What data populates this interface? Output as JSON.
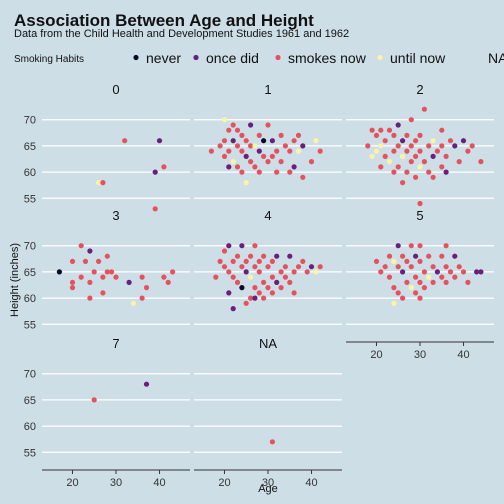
{
  "chart_data": {
    "type": "scatter",
    "title": "Association Between Age and Height",
    "subtitle": "Data from the Child Health and Development Studies 1961 and 1962",
    "xlabel": "Age",
    "ylabel": "Height (inches)",
    "xlim": [
      13,
      47
    ],
    "ylim": [
      52,
      73
    ],
    "x_ticks": [
      20,
      30,
      40
    ],
    "y_ticks": [
      55,
      60,
      65,
      70
    ],
    "grid": true,
    "legend": {
      "title": "Smoking Habits",
      "position": "top",
      "entries": [
        {
          "label": "never",
          "color": "#0d0a29"
        },
        {
          "label": "once did",
          "color": "#6a1f7a"
        },
        {
          "label": "smokes now",
          "color": "#e5525f"
        },
        {
          "label": "until now",
          "color": "#fdf3a8"
        },
        {
          "label": "NA",
          "color": "#9d9d9d"
        }
      ]
    },
    "panels": [
      {
        "label": "0",
        "points": [
          [
            32,
            66,
            2
          ],
          [
            40,
            66,
            1
          ],
          [
            39,
            60,
            1
          ],
          [
            41,
            61,
            2
          ],
          [
            26,
            58,
            3
          ],
          [
            27,
            58,
            2
          ],
          [
            39,
            53,
            2
          ]
        ]
      },
      {
        "label": "1",
        "points": [
          [
            21,
            68,
            2
          ],
          [
            23,
            68,
            2
          ],
          [
            20,
            70,
            3
          ],
          [
            22,
            69,
            2
          ],
          [
            26,
            69,
            1
          ],
          [
            30,
            69,
            2
          ],
          [
            24,
            67,
            2
          ],
          [
            28,
            67,
            2
          ],
          [
            33,
            67,
            2
          ],
          [
            20,
            66,
            2
          ],
          [
            22,
            66,
            1
          ],
          [
            25,
            66,
            2
          ],
          [
            29,
            66,
            0
          ],
          [
            31,
            66,
            1
          ],
          [
            36,
            66,
            2
          ],
          [
            19,
            65,
            2
          ],
          [
            23,
            65,
            2
          ],
          [
            26,
            65,
            2
          ],
          [
            27,
            65,
            3
          ],
          [
            34,
            65,
            2
          ],
          [
            38,
            65,
            1
          ],
          [
            21,
            64,
            2
          ],
          [
            24,
            64,
            2
          ],
          [
            28,
            64,
            1
          ],
          [
            32,
            64,
            2
          ],
          [
            35,
            64,
            2
          ],
          [
            37,
            64,
            3
          ],
          [
            20,
            63,
            2
          ],
          [
            25,
            63,
            1
          ],
          [
            29,
            63,
            2
          ],
          [
            31,
            63,
            2
          ],
          [
            22,
            62,
            3
          ],
          [
            26,
            62,
            2
          ],
          [
            30,
            62,
            2
          ],
          [
            33,
            62,
            2
          ],
          [
            40,
            62,
            2
          ],
          [
            23,
            61,
            2
          ],
          [
            27,
            61,
            2
          ],
          [
            36,
            61,
            1
          ],
          [
            24,
            60,
            2
          ],
          [
            28,
            60,
            2
          ],
          [
            35,
            60,
            2
          ],
          [
            25,
            58,
            3
          ],
          [
            38,
            59,
            2
          ],
          [
            41,
            66,
            3
          ],
          [
            37,
            67,
            2
          ],
          [
            42,
            64,
            2
          ],
          [
            17,
            64,
            2
          ],
          [
            21,
            61,
            1
          ],
          [
            32,
            60,
            2
          ]
        ]
      },
      {
        "label": "2",
        "points": [
          [
            19,
            68,
            2
          ],
          [
            21,
            68,
            2
          ],
          [
            23,
            68,
            2
          ],
          [
            25,
            69,
            1
          ],
          [
            28,
            70,
            2
          ],
          [
            31,
            72,
            2
          ],
          [
            35,
            68,
            2
          ],
          [
            20,
            67,
            2
          ],
          [
            24,
            67,
            2
          ],
          [
            27,
            67,
            2
          ],
          [
            30,
            67,
            2
          ],
          [
            33,
            66,
            3
          ],
          [
            37,
            66,
            2
          ],
          [
            40,
            66,
            1
          ],
          [
            22,
            66,
            2
          ],
          [
            26,
            66,
            1
          ],
          [
            29,
            66,
            2
          ],
          [
            18,
            65,
            2
          ],
          [
            21,
            65,
            3
          ],
          [
            25,
            65,
            2
          ],
          [
            28,
            65,
            2
          ],
          [
            32,
            65,
            2
          ],
          [
            35,
            65,
            2
          ],
          [
            38,
            65,
            1
          ],
          [
            20,
            64,
            3
          ],
          [
            24,
            64,
            2
          ],
          [
            27,
            64,
            2
          ],
          [
            30,
            64,
            2
          ],
          [
            34,
            64,
            2
          ],
          [
            22,
            63,
            2
          ],
          [
            26,
            63,
            3
          ],
          [
            29,
            63,
            2
          ],
          [
            33,
            63,
            1
          ],
          [
            36,
            63,
            2
          ],
          [
            23,
            62,
            3
          ],
          [
            28,
            62,
            2
          ],
          [
            31,
            62,
            2
          ],
          [
            21,
            61,
            2
          ],
          [
            25,
            61,
            2
          ],
          [
            30,
            61,
            3
          ],
          [
            35,
            61,
            2
          ],
          [
            24,
            60,
            2
          ],
          [
            27,
            60,
            2
          ],
          [
            32,
            60,
            2
          ],
          [
            29,
            59,
            2
          ],
          [
            26,
            58,
            2
          ],
          [
            30,
            54,
            2
          ],
          [
            39,
            62,
            2
          ],
          [
            42,
            65,
            2
          ],
          [
            44,
            62,
            2
          ],
          [
            19,
            63,
            3
          ],
          [
            41,
            64,
            2
          ],
          [
            36,
            60,
            1
          ],
          [
            33,
            59,
            2
          ]
        ]
      },
      {
        "label": "3",
        "points": [
          [
            22,
            70,
            2
          ],
          [
            17,
            65,
            0
          ],
          [
            24,
            69,
            1
          ],
          [
            26,
            67,
            2
          ],
          [
            20,
            67,
            2
          ],
          [
            25,
            65,
            2
          ],
          [
            28,
            65,
            2
          ],
          [
            22,
            64,
            2
          ],
          [
            24,
            63,
            2
          ],
          [
            20,
            63,
            2
          ],
          [
            27,
            64,
            2
          ],
          [
            30,
            64,
            2
          ],
          [
            33,
            63,
            1
          ],
          [
            36,
            64,
            2
          ],
          [
            28,
            68,
            2
          ],
          [
            24,
            60,
            2
          ],
          [
            27,
            61,
            2
          ],
          [
            37,
            62,
            2
          ],
          [
            36,
            60,
            2
          ],
          [
            34,
            59,
            3
          ],
          [
            20,
            62,
            2
          ],
          [
            41,
            64,
            2
          ],
          [
            43,
            65,
            2
          ],
          [
            42,
            63,
            2
          ],
          [
            29,
            65,
            2
          ],
          [
            23,
            67,
            2
          ]
        ]
      },
      {
        "label": "4",
        "points": [
          [
            21,
            70,
            1
          ],
          [
            24,
            70,
            1
          ],
          [
            27,
            70,
            2
          ],
          [
            20,
            69,
            2
          ],
          [
            23,
            68,
            2
          ],
          [
            26,
            68,
            2
          ],
          [
            29,
            68,
            2
          ],
          [
            32,
            68,
            1
          ],
          [
            35,
            68,
            1
          ],
          [
            19,
            67,
            2
          ],
          [
            22,
            67,
            2
          ],
          [
            25,
            67,
            2
          ],
          [
            28,
            67,
            2
          ],
          [
            31,
            67,
            2
          ],
          [
            34,
            66,
            2
          ],
          [
            37,
            66,
            2
          ],
          [
            40,
            66,
            1
          ],
          [
            20,
            66,
            2
          ],
          [
            24,
            66,
            2
          ],
          [
            27,
            66,
            2
          ],
          [
            30,
            66,
            2
          ],
          [
            33,
            65,
            2
          ],
          [
            36,
            65,
            2
          ],
          [
            39,
            65,
            2
          ],
          [
            42,
            66,
            2
          ],
          [
            21,
            65,
            2
          ],
          [
            25,
            65,
            1
          ],
          [
            28,
            65,
            2
          ],
          [
            31,
            64,
            2
          ],
          [
            34,
            64,
            2
          ],
          [
            22,
            64,
            2
          ],
          [
            26,
            64,
            3
          ],
          [
            29,
            63,
            2
          ],
          [
            32,
            63,
            1
          ],
          [
            23,
            63,
            2
          ],
          [
            27,
            62,
            2
          ],
          [
            30,
            62,
            2
          ],
          [
            24,
            62,
            0
          ],
          [
            28,
            61,
            2
          ],
          [
            21,
            61,
            1
          ],
          [
            26,
            60,
            2
          ],
          [
            33,
            62,
            2
          ],
          [
            36,
            61,
            2
          ],
          [
            25,
            59,
            2
          ],
          [
            29,
            60,
            2
          ],
          [
            38,
            67,
            2
          ],
          [
            41,
            65,
            3
          ],
          [
            18,
            64,
            2
          ],
          [
            35,
            63,
            2
          ],
          [
            31,
            61,
            2
          ],
          [
            22,
            58,
            1
          ],
          [
            27,
            60,
            1
          ]
        ]
      },
      {
        "label": "5",
        "points": [
          [
            25,
            70,
            1
          ],
          [
            28,
            70,
            2
          ],
          [
            30,
            70,
            2
          ],
          [
            23,
            68,
            2
          ],
          [
            26,
            68,
            2
          ],
          [
            29,
            68,
            1
          ],
          [
            32,
            68,
            2
          ],
          [
            35,
            68,
            2
          ],
          [
            38,
            68,
            1
          ],
          [
            20,
            67,
            2
          ],
          [
            24,
            67,
            3
          ],
          [
            27,
            67,
            2
          ],
          [
            30,
            67,
            2
          ],
          [
            33,
            66,
            2
          ],
          [
            36,
            66,
            2
          ],
          [
            39,
            66,
            2
          ],
          [
            22,
            66,
            2
          ],
          [
            25,
            66,
            2
          ],
          [
            28,
            66,
            2
          ],
          [
            31,
            65,
            2
          ],
          [
            34,
            65,
            1
          ],
          [
            37,
            65,
            2
          ],
          [
            40,
            65,
            2
          ],
          [
            43,
            65,
            1
          ],
          [
            44,
            65,
            1
          ],
          [
            21,
            65,
            2
          ],
          [
            26,
            65,
            1
          ],
          [
            29,
            64,
            2
          ],
          [
            32,
            64,
            3
          ],
          [
            35,
            64,
            2
          ],
          [
            38,
            64,
            2
          ],
          [
            23,
            64,
            2
          ],
          [
            27,
            63,
            2
          ],
          [
            30,
            63,
            2
          ],
          [
            33,
            63,
            2
          ],
          [
            36,
            63,
            2
          ],
          [
            24,
            62,
            2
          ],
          [
            28,
            62,
            3
          ],
          [
            31,
            62,
            2
          ],
          [
            25,
            61,
            2
          ],
          [
            29,
            61,
            2
          ],
          [
            26,
            60,
            2
          ],
          [
            30,
            60,
            2
          ],
          [
            24,
            59,
            3
          ],
          [
            41,
            63,
            2
          ],
          [
            36,
            70,
            2
          ]
        ]
      },
      {
        "label": "7",
        "points": [
          [
            25,
            65,
            2
          ],
          [
            37,
            68,
            1
          ]
        ]
      },
      {
        "label": "NA",
        "points": [
          [
            31,
            57,
            2
          ]
        ]
      }
    ]
  }
}
